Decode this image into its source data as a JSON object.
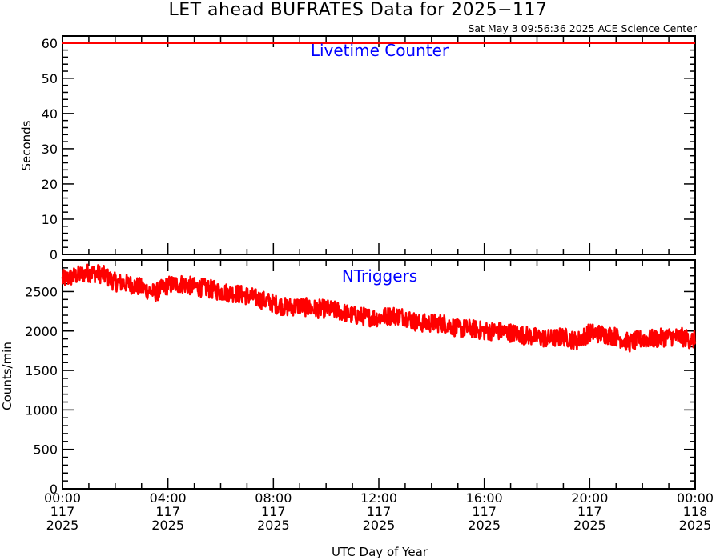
{
  "title": "LET ahead BUFRATES Data for 2025−117",
  "timestamp": "Sat May  3 09:56:36 2025 ACE Science Center",
  "xlabel": "UTC Day of Year",
  "x_tick_labels": [
    [
      "00:00",
      "117",
      "2025"
    ],
    [
      "04:00",
      "117",
      "2025"
    ],
    [
      "08:00",
      "117",
      "2025"
    ],
    [
      "12:00",
      "117",
      "2025"
    ],
    [
      "16:00",
      "117",
      "2025"
    ],
    [
      "20:00",
      "117",
      "2025"
    ],
    [
      "00:00",
      "118",
      "2025"
    ]
  ],
  "colors": {
    "series": "#ff0000",
    "label": "#0000ff",
    "axis": "#000000"
  },
  "chart_data": [
    {
      "type": "line",
      "panel_label": "Livetime Counter",
      "ylabel": "Seconds",
      "xlim_hours": [
        0,
        24
      ],
      "ylim": [
        0,
        62
      ],
      "y_ticks": [
        0,
        10,
        20,
        30,
        40,
        50,
        60
      ],
      "x": [
        0,
        2,
        4,
        6,
        8,
        10,
        12,
        14,
        16,
        18,
        20,
        22,
        24
      ],
      "values": [
        60,
        60,
        60,
        60,
        60,
        60,
        60,
        60,
        60,
        60,
        60,
        60,
        60
      ]
    },
    {
      "type": "line",
      "panel_label": "NTriggers",
      "ylabel": "Counts/min",
      "xlim_hours": [
        0,
        24
      ],
      "ylim": [
        0,
        2900
      ],
      "y_ticks": [
        0,
        500,
        1000,
        1500,
        2000,
        2500
      ],
      "x": [
        0,
        0.5,
        1,
        1.5,
        2,
        2.5,
        3,
        3.5,
        4,
        4.5,
        5,
        5.5,
        6,
        6.5,
        7,
        7.5,
        8,
        8.5,
        9,
        9.5,
        10,
        10.5,
        11,
        11.5,
        12,
        12.5,
        13,
        13.5,
        14,
        14.5,
        15,
        15.5,
        16,
        16.5,
        17,
        17.5,
        18,
        18.5,
        19,
        19.5,
        20,
        20.5,
        21,
        21.5,
        22,
        22.5,
        23,
        23.5,
        24
      ],
      "values": [
        2650,
        2700,
        2740,
        2720,
        2620,
        2600,
        2550,
        2480,
        2580,
        2600,
        2560,
        2540,
        2500,
        2480,
        2450,
        2400,
        2350,
        2300,
        2320,
        2280,
        2280,
        2250,
        2200,
        2180,
        2170,
        2200,
        2180,
        2100,
        2100,
        2100,
        2030,
        2030,
        2000,
        2000,
        1980,
        1950,
        1920,
        1900,
        1930,
        1870,
        1980,
        1960,
        1930,
        1850,
        1900,
        1900,
        1930,
        1920,
        1880
      ],
      "noise_amplitude": 120
    }
  ]
}
